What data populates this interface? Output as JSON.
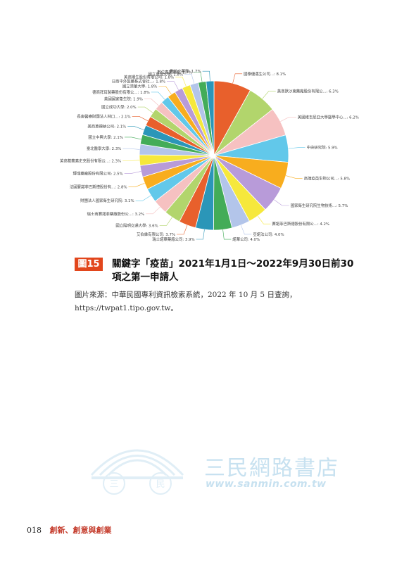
{
  "chart_data": {
    "type": "pie",
    "slices": [
      {
        "label": "國泰優邁生公司...",
        "value": 8.1,
        "pct_label": "8.1%",
        "color": "#e8602c"
      },
      {
        "label": "美商默沙東藥廠股份有限公...",
        "value": 6.3,
        "pct_label": "6.3%",
        "color": "#b2d56c"
      },
      {
        "label": "美國維吉尼亞大學醫學中心...",
        "value": 6.2,
        "pct_label": "6.2%",
        "color": "#f6c1c1"
      },
      {
        "label": "中央研究院",
        "value": 5.9,
        "pct_label": "5.9%",
        "color": "#62c8ea"
      },
      {
        "label": "高端疫苗生物公司...",
        "value": 5.8,
        "pct_label": "5.8%",
        "color": "#f8ad1e"
      },
      {
        "label": "國家衛生研究院生物技術...",
        "value": 5.7,
        "pct_label": "5.7%",
        "color": "#b89bd9"
      },
      {
        "label": "賽諾菲巴斯德股份有限公...",
        "value": 4.2,
        "pct_label": "4.2%",
        "color": "#f6e83c"
      },
      {
        "label": "亞諾法公司",
        "value": 4.0,
        "pct_label": "4.0%",
        "color": "#b3c5ea"
      },
      {
        "label": "諾華公司",
        "value": 4.0,
        "pct_label": "4.0%",
        "color": "#43ac58"
      },
      {
        "label": "瑞士諾華藥廠公司",
        "value": 3.9,
        "pct_label": "3.9%",
        "color": "#2b96b8"
      },
      {
        "label": "艾伯維有限公司",
        "value": 3.7,
        "pct_label": "3.7%",
        "color": "#e8602c"
      },
      {
        "label": "國立陽明交通大學",
        "value": 3.6,
        "pct_label": "3.6%",
        "color": "#b2d56c"
      },
      {
        "label": "瑞士商賽諾菲藥廠股份公...",
        "value": 3.2,
        "pct_label": "3.2%",
        "color": "#f6c1c1"
      },
      {
        "label": "財團法人國家衛生研究院",
        "value": 3.1,
        "pct_label": "3.1%",
        "color": "#62c8ea"
      },
      {
        "label": "法國賽諾菲巴斯德股份有...",
        "value": 2.8,
        "pct_label": "2.8%",
        "color": "#f8ad1e"
      },
      {
        "label": "輝瑞藥廠股份有限公司",
        "value": 2.5,
        "pct_label": "2.5%",
        "color": "#b89bd9"
      },
      {
        "label": "英商葛蘭素史克股份有限公...",
        "value": 2.3,
        "pct_label": "2.3%",
        "color": "#f6e83c"
      },
      {
        "label": "臺北醫學大學",
        "value": 2.3,
        "pct_label": "2.3%",
        "color": "#b3c5ea"
      },
      {
        "label": "國立中興大學",
        "value": 2.1,
        "pct_label": "2.1%",
        "color": "#43ac58"
      },
      {
        "label": "美商莫德納公司",
        "value": 2.1,
        "pct_label": "2.1%",
        "color": "#2b96b8"
      },
      {
        "label": "長庚醫療財團法人林口...",
        "value": 2.1,
        "pct_label": "2.1%",
        "color": "#e8602c"
      },
      {
        "label": "國立成功大學",
        "value": 2.0,
        "pct_label": "2.0%",
        "color": "#b2d56c"
      },
      {
        "label": "美國國家衛生院",
        "value": 1.9,
        "pct_label": "1.9%",
        "color": "#f6c1c1"
      },
      {
        "label": "德商拜耳製藥股份有限公...",
        "value": 1.8,
        "pct_label": "1.8%",
        "color": "#62c8ea"
      },
      {
        "label": "國立清華大學",
        "value": 1.8,
        "pct_label": "1.8%",
        "color": "#f8ad1e"
      },
      {
        "label": "日商中外製藥株式會社...",
        "value": 1.8,
        "pct_label": "1.8%",
        "color": "#b89bd9"
      },
      {
        "label": "美商嬌生股份有限公司",
        "value": 1.8,
        "pct_label": "1.8%",
        "color": "#f6e83c"
      },
      {
        "label": "國立臺灣大學",
        "value": 1.8,
        "pct_label": "1.8%",
        "color": "#b3c5ea"
      },
      {
        "label": "數位專業藥廠",
        "value": 1.7,
        "pct_label": "1.7%",
        "color": "#43ac58"
      },
      {
        "label": "數位小藥廠",
        "value": 1.7,
        "pct_label": "1.7%",
        "color": "#2b96b8"
      }
    ]
  },
  "caption": {
    "badge": "圖15",
    "title": "關鍵字「疫苗」2021年1月1日～2022年9月30日前30項之第一申請人",
    "source": "圖片來源：中華民國專利資訊檢索系統，2022 年 10 月 5 日查詢，https://twpat1.tipo.gov.tw。"
  },
  "watermark": {
    "circle_char_left": "三",
    "circle_char_right": "民",
    "name": "三民網路書店",
    "url": "www.sanmin.com.tw"
  },
  "footer": {
    "page_number": "018",
    "book_title": "創新、創意與創業"
  },
  "colors": {
    "badge": "#e2461c",
    "footer_title": "#c43a2a",
    "watermark": "#c7e1f0"
  }
}
